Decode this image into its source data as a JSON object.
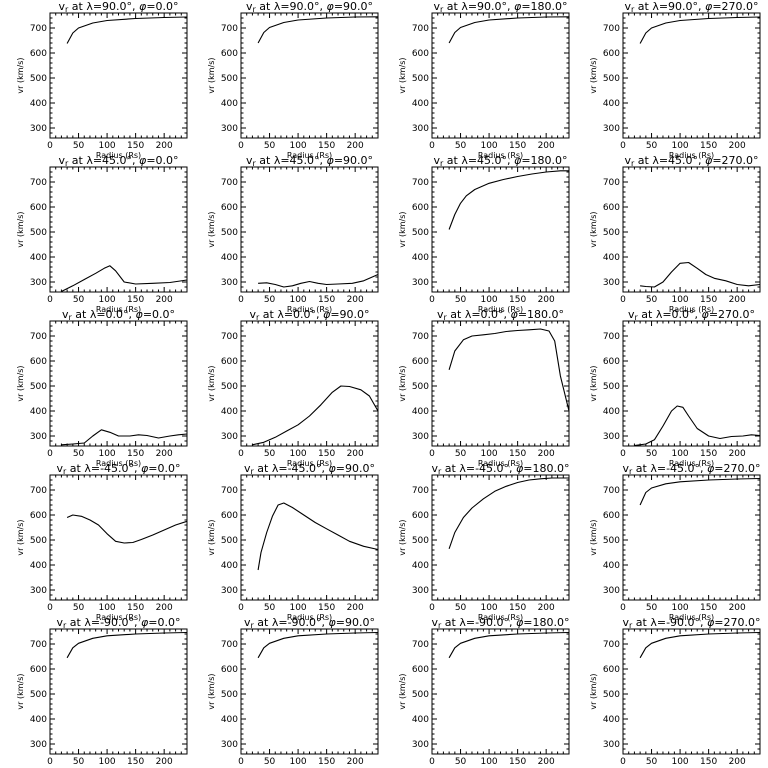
{
  "chart_data": [
    {
      "type": "line",
      "title": "vr at λ=90.0°, φ=0.0°",
      "title_parts": {
        "lambda": "90.0",
        "phi": "0.0"
      },
      "xlabel": "Radius (Rs)",
      "ylabel": "vr (km/s)",
      "xlim": [
        0,
        240
      ],
      "ylim": [
        260,
        760
      ],
      "xticks": [
        0,
        50,
        100,
        150,
        200
      ],
      "yticks": [
        300,
        400,
        500,
        600,
        700
      ],
      "series": [
        {
          "x": [
            30,
            40,
            50,
            75,
            100,
            150,
            200,
            240
          ],
          "y": [
            638,
            680,
            700,
            720,
            730,
            738,
            742,
            744
          ]
        }
      ]
    },
    {
      "type": "line",
      "title": "vr at λ=90.0°, φ=90.0°",
      "title_parts": {
        "lambda": "90.0",
        "phi": "90.0"
      },
      "xlabel": "Radius (Rs)",
      "ylabel": "vr (km/s)",
      "xlim": [
        0,
        240
      ],
      "ylim": [
        260,
        760
      ],
      "xticks": [
        0,
        50,
        100,
        150,
        200
      ],
      "yticks": [
        300,
        400,
        500,
        600,
        700
      ],
      "series": [
        {
          "x": [
            30,
            40,
            50,
            75,
            100,
            150,
            200,
            240
          ],
          "y": [
            640,
            682,
            702,
            722,
            732,
            740,
            744,
            745
          ]
        }
      ]
    },
    {
      "type": "line",
      "title": "vr at λ=90.0°, φ=180.0°",
      "title_parts": {
        "lambda": "90.0",
        "phi": "180.0"
      },
      "xlabel": "Radius (Rs)",
      "ylabel": "vr (km/s)",
      "xlim": [
        0,
        240
      ],
      "ylim": [
        260,
        760
      ],
      "xticks": [
        0,
        50,
        100,
        150,
        200
      ],
      "yticks": [
        300,
        400,
        500,
        600,
        700
      ],
      "series": [
        {
          "x": [
            30,
            40,
            50,
            75,
            100,
            150,
            200,
            240
          ],
          "y": [
            640,
            682,
            702,
            722,
            732,
            740,
            744,
            745
          ]
        }
      ]
    },
    {
      "type": "line",
      "title": "vr at λ=90.0°, φ=270.0°",
      "title_parts": {
        "lambda": "90.0",
        "phi": "270.0"
      },
      "xlabel": "Radius (Rs)",
      "ylabel": "vr (km/s)",
      "xlim": [
        0,
        240
      ],
      "ylim": [
        260,
        760
      ],
      "xticks": [
        0,
        50,
        100,
        150,
        200
      ],
      "yticks": [
        300,
        400,
        500,
        600,
        700
      ],
      "series": [
        {
          "x": [
            30,
            40,
            50,
            75,
            100,
            150,
            200,
            240
          ],
          "y": [
            638,
            680,
            700,
            720,
            730,
            738,
            742,
            744
          ]
        }
      ]
    },
    {
      "type": "line",
      "title": "vr at λ=45.0°, φ=0.0°",
      "title_parts": {
        "lambda": "45.0",
        "phi": "0.0"
      },
      "xlabel": "Radius (Rs)",
      "ylabel": "vr (km/s)",
      "xlim": [
        0,
        240
      ],
      "ylim": [
        260,
        760
      ],
      "xticks": [
        0,
        50,
        100,
        150,
        200
      ],
      "yticks": [
        300,
        400,
        500,
        600,
        700
      ],
      "series": [
        {
          "x": [
            20,
            40,
            60,
            80,
            95,
            105,
            115,
            130,
            150,
            180,
            210,
            240
          ],
          "y": [
            262,
            285,
            310,
            335,
            355,
            365,
            345,
            300,
            292,
            295,
            298,
            308
          ]
        }
      ]
    },
    {
      "type": "line",
      "title": "vr at λ=45.0°, φ=90.0°",
      "title_parts": {
        "lambda": "45.0",
        "phi": "90.0"
      },
      "xlabel": "Radius (Rs)",
      "ylabel": "vr (km/s)",
      "xlim": [
        0,
        240
      ],
      "ylim": [
        260,
        760
      ],
      "xticks": [
        0,
        50,
        100,
        150,
        200
      ],
      "yticks": [
        300,
        400,
        500,
        600,
        700
      ],
      "series": [
        {
          "x": [
            30,
            45,
            60,
            75,
            90,
            105,
            120,
            135,
            150,
            170,
            195,
            215,
            240
          ],
          "y": [
            295,
            297,
            290,
            280,
            285,
            295,
            302,
            295,
            290,
            292,
            295,
            305,
            330
          ]
        }
      ]
    },
    {
      "type": "line",
      "title": "vr at λ=45.0°, φ=180.0°",
      "title_parts": {
        "lambda": "45.0",
        "phi": "180.0"
      },
      "xlabel": "Radius (Rs)",
      "ylabel": "vr (km/s)",
      "xlim": [
        0,
        240
      ],
      "ylim": [
        260,
        760
      ],
      "xticks": [
        0,
        50,
        100,
        150,
        200
      ],
      "yticks": [
        300,
        400,
        500,
        600,
        700
      ],
      "series": [
        {
          "x": [
            30,
            40,
            50,
            60,
            75,
            100,
            125,
            150,
            175,
            200,
            225,
            240
          ],
          "y": [
            510,
            570,
            615,
            645,
            670,
            695,
            710,
            722,
            732,
            740,
            745,
            745
          ]
        }
      ]
    },
    {
      "type": "line",
      "title": "vr at λ=45.0°, φ=270.0°",
      "title_parts": {
        "lambda": "45.0",
        "phi": "270.0"
      },
      "xlabel": "Radius (Rs)",
      "ylabel": "vr (km/s)",
      "xlim": [
        0,
        240
      ],
      "ylim": [
        260,
        760
      ],
      "xticks": [
        0,
        50,
        100,
        150,
        200
      ],
      "yticks": [
        300,
        400,
        500,
        600,
        700
      ],
      "series": [
        {
          "x": [
            30,
            40,
            55,
            70,
            85,
            100,
            115,
            130,
            145,
            160,
            180,
            200,
            220,
            240
          ],
          "y": [
            285,
            282,
            280,
            300,
            340,
            375,
            378,
            355,
            330,
            315,
            305,
            290,
            285,
            290
          ]
        }
      ]
    },
    {
      "type": "line",
      "title": "vr at λ=0.0°, φ=0.0°",
      "title_parts": {
        "lambda": "0.0",
        "phi": "0.0"
      },
      "xlabel": "Radius (Rs)",
      "ylabel": "vr (km/s)",
      "xlim": [
        0,
        240
      ],
      "ylim": [
        260,
        760
      ],
      "xticks": [
        0,
        50,
        100,
        150,
        200
      ],
      "yticks": [
        300,
        400,
        500,
        600,
        700
      ],
      "series": [
        {
          "x": [
            20,
            40,
            60,
            75,
            90,
            105,
            120,
            140,
            155,
            170,
            190,
            210,
            225,
            240
          ],
          "y": [
            265,
            268,
            272,
            300,
            325,
            315,
            300,
            300,
            305,
            302,
            292,
            300,
            305,
            308
          ]
        }
      ]
    },
    {
      "type": "line",
      "title": "vr at λ=0.0°, φ=90.0°",
      "title_parts": {
        "lambda": "0.0",
        "phi": "90.0"
      },
      "xlabel": "Radius (Rs)",
      "ylabel": "vr (km/s)",
      "xlim": [
        0,
        240
      ],
      "ylim": [
        260,
        760
      ],
      "xticks": [
        0,
        50,
        100,
        150,
        200
      ],
      "yticks": [
        300,
        400,
        500,
        600,
        700
      ],
      "series": [
        {
          "x": [
            20,
            40,
            60,
            80,
            100,
            120,
            140,
            160,
            175,
            190,
            210,
            225,
            240
          ],
          "y": [
            265,
            275,
            295,
            320,
            345,
            380,
            425,
            475,
            500,
            498,
            485,
            460,
            400
          ]
        }
      ]
    },
    {
      "type": "line",
      "title": "vr at λ=0.0°, φ=180.0°",
      "title_parts": {
        "lambda": "0.0",
        "phi": "180.0"
      },
      "xlabel": "Radius (Rs)",
      "ylabel": "vr (km/s)",
      "xlim": [
        0,
        240
      ],
      "ylim": [
        260,
        760
      ],
      "xticks": [
        0,
        50,
        100,
        150,
        200
      ],
      "yticks": [
        300,
        400,
        500,
        600,
        700
      ],
      "series": [
        {
          "x": [
            30,
            40,
            55,
            70,
            90,
            110,
            130,
            150,
            170,
            190,
            205,
            215,
            225,
            240
          ],
          "y": [
            565,
            640,
            685,
            700,
            705,
            710,
            718,
            722,
            725,
            728,
            720,
            680,
            540,
            400
          ]
        }
      ]
    },
    {
      "type": "line",
      "title": "vr at λ=0.0°, φ=270.0°",
      "title_parts": {
        "lambda": "0.0",
        "phi": "270.0"
      },
      "xlabel": "Radius (Rs)",
      "ylabel": "vr (km/s)",
      "xlim": [
        0,
        240
      ],
      "ylim": [
        260,
        760
      ],
      "xticks": [
        0,
        50,
        100,
        150,
        200
      ],
      "yticks": [
        300,
        400,
        500,
        600,
        700
      ],
      "series": [
        {
          "x": [
            20,
            40,
            55,
            70,
            85,
            95,
            105,
            115,
            130,
            150,
            170,
            190,
            210,
            225,
            240
          ],
          "y": [
            262,
            268,
            285,
            340,
            400,
            420,
            415,
            380,
            330,
            300,
            290,
            298,
            300,
            305,
            302
          ]
        }
      ]
    },
    {
      "type": "line",
      "title": "vr at λ=-45.0°, φ=0.0°",
      "title_parts": {
        "lambda": "-45.0",
        "phi": "0.0"
      },
      "xlabel": "Radius (Rs)",
      "ylabel": "vr (km/s)",
      "xlim": [
        0,
        240
      ],
      "ylim": [
        260,
        760
      ],
      "xticks": [
        0,
        50,
        100,
        150,
        200
      ],
      "yticks": [
        300,
        400,
        500,
        600,
        700
      ],
      "series": [
        {
          "x": [
            30,
            40,
            55,
            70,
            85,
            100,
            115,
            130,
            145,
            160,
            180,
            200,
            220,
            240
          ],
          "y": [
            590,
            600,
            595,
            580,
            560,
            525,
            495,
            488,
            490,
            502,
            520,
            540,
            560,
            575
          ]
        }
      ]
    },
    {
      "type": "line",
      "title": "vr at λ=-45.0°, φ=90.0°",
      "title_parts": {
        "lambda": "-45.0",
        "phi": "90.0"
      },
      "xlabel": "Radius (Rs)",
      "ylabel": "vr (km/s)",
      "xlim": [
        0,
        240
      ],
      "ylim": [
        260,
        760
      ],
      "xticks": [
        0,
        50,
        100,
        150,
        200
      ],
      "yticks": [
        300,
        400,
        500,
        600,
        700
      ],
      "series": [
        {
          "x": [
            30,
            35,
            45,
            55,
            65,
            75,
            90,
            110,
            130,
            150,
            170,
            190,
            215,
            240
          ],
          "y": [
            380,
            450,
            530,
            595,
            640,
            648,
            630,
            600,
            570,
            545,
            520,
            495,
            475,
            462
          ]
        }
      ]
    },
    {
      "type": "line",
      "title": "vr at λ=-45.0°, φ=180.0°",
      "title_parts": {
        "lambda": "-45.0",
        "phi": "180.0"
      },
      "xlabel": "Radius (Rs)",
      "ylabel": "vr (km/s)",
      "xlim": [
        0,
        240
      ],
      "ylim": [
        260,
        760
      ],
      "xticks": [
        0,
        50,
        100,
        150,
        200
      ],
      "yticks": [
        300,
        400,
        500,
        600,
        700
      ],
      "series": [
        {
          "x": [
            30,
            40,
            55,
            70,
            90,
            110,
            130,
            150,
            170,
            190,
            210,
            240
          ],
          "y": [
            465,
            530,
            590,
            628,
            665,
            695,
            715,
            730,
            740,
            745,
            748,
            748
          ]
        }
      ]
    },
    {
      "type": "line",
      "title": "vr at λ=-45.0°, φ=270.0°",
      "title_parts": {
        "lambda": "-45.0",
        "phi": "270.0"
      },
      "xlabel": "Radius (Rs)",
      "ylabel": "vr (km/s)",
      "xlim": [
        0,
        240
      ],
      "ylim": [
        260,
        760
      ],
      "xticks": [
        0,
        50,
        100,
        150,
        200
      ],
      "yticks": [
        300,
        400,
        500,
        600,
        700
      ],
      "series": [
        {
          "x": [
            30,
            40,
            50,
            75,
            100,
            150,
            200,
            240
          ],
          "y": [
            640,
            690,
            708,
            725,
            733,
            740,
            744,
            746
          ]
        }
      ]
    },
    {
      "type": "line",
      "title": "vr at λ=-90.0°, φ=0.0°",
      "title_parts": {
        "lambda": "-90.0",
        "phi": "0.0"
      },
      "xlabel": "Radius (Rs)",
      "ylabel": "vr (km/s)",
      "xlim": [
        0,
        240
      ],
      "ylim": [
        260,
        760
      ],
      "xticks": [
        0,
        50,
        100,
        150,
        200
      ],
      "yticks": [
        300,
        400,
        500,
        600,
        700
      ],
      "series": [
        {
          "x": [
            30,
            40,
            50,
            75,
            100,
            150,
            200,
            240
          ],
          "y": [
            645,
            685,
            703,
            723,
            733,
            740,
            744,
            746
          ]
        }
      ]
    },
    {
      "type": "line",
      "title": "vr at λ=-90.0°, φ=90.0°",
      "title_parts": {
        "lambda": "-90.0",
        "phi": "90.0"
      },
      "xlabel": "Radius (Rs)",
      "ylabel": "vr (km/s)",
      "xlim": [
        0,
        240
      ],
      "ylim": [
        260,
        760
      ],
      "xticks": [
        0,
        50,
        100,
        150,
        200
      ],
      "yticks": [
        300,
        400,
        500,
        600,
        700
      ],
      "series": [
        {
          "x": [
            30,
            40,
            50,
            75,
            100,
            150,
            200,
            240
          ],
          "y": [
            645,
            685,
            703,
            723,
            733,
            740,
            744,
            746
          ]
        }
      ]
    },
    {
      "type": "line",
      "title": "vr at λ=-90.0°, φ=180.0°",
      "title_parts": {
        "lambda": "-90.0",
        "phi": "180.0"
      },
      "xlabel": "Radius (Rs)",
      "ylabel": "vr (km/s)",
      "xlim": [
        0,
        240
      ],
      "ylim": [
        260,
        760
      ],
      "xticks": [
        0,
        50,
        100,
        150,
        200
      ],
      "yticks": [
        300,
        400,
        500,
        600,
        700
      ],
      "series": [
        {
          "x": [
            30,
            40,
            50,
            75,
            100,
            150,
            200,
            240
          ],
          "y": [
            645,
            685,
            703,
            723,
            733,
            740,
            744,
            746
          ]
        }
      ]
    },
    {
      "type": "line",
      "title": "vr at λ=-90.0°, φ=270.0°",
      "title_parts": {
        "lambda": "-90.0",
        "phi": "270.0"
      },
      "xlabel": "Radius (Rs)",
      "ylabel": "vr (km/s)",
      "xlim": [
        0,
        240
      ],
      "ylim": [
        260,
        760
      ],
      "xticks": [
        0,
        50,
        100,
        150,
        200
      ],
      "yticks": [
        300,
        400,
        500,
        600,
        700
      ],
      "series": [
        {
          "x": [
            30,
            40,
            50,
            75,
            100,
            150,
            200,
            240
          ],
          "y": [
            645,
            685,
            703,
            723,
            733,
            740,
            744,
            746
          ]
        }
      ]
    }
  ]
}
